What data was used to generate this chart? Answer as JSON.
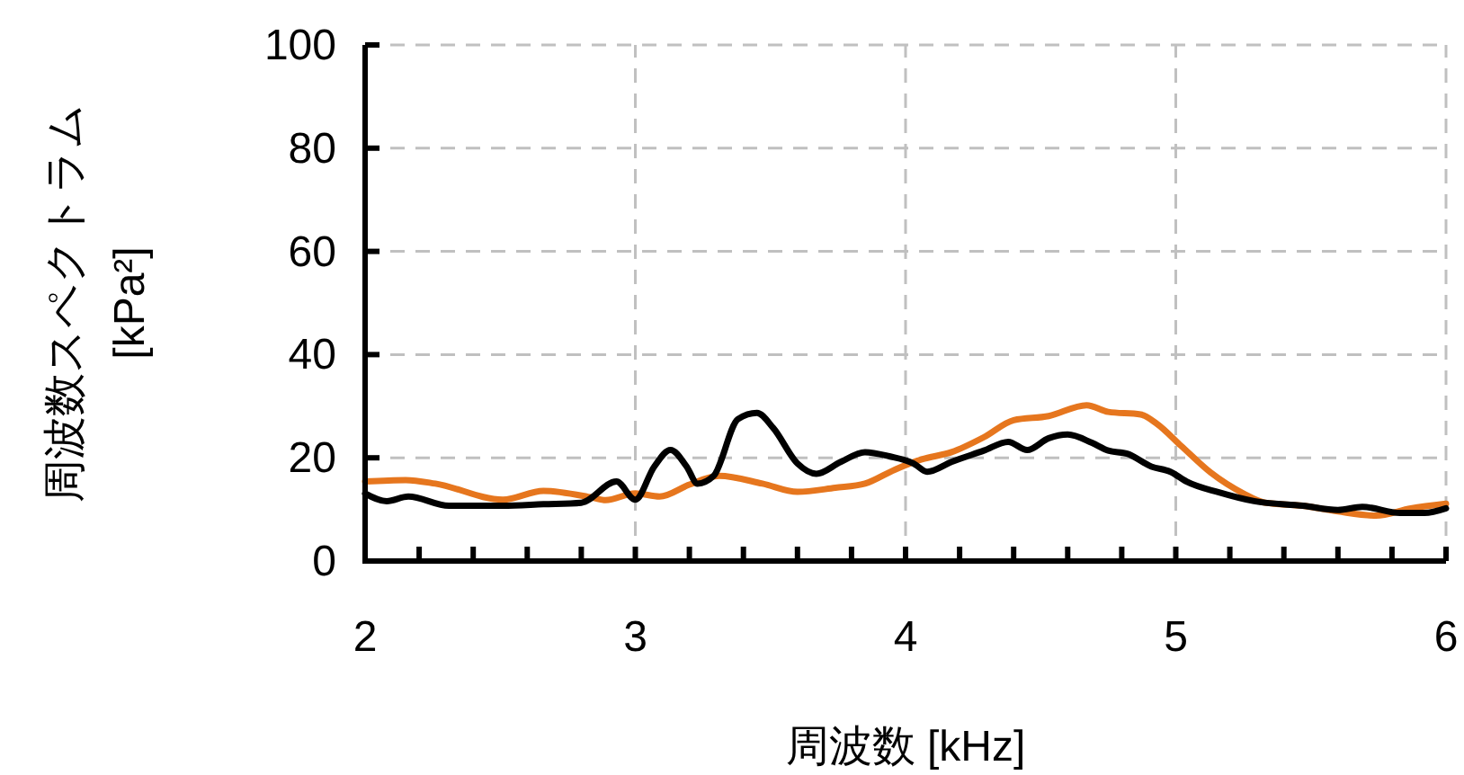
{
  "chart_data": {
    "type": "line",
    "xlabel": "周波数 [kHz]",
    "ylabel": "周波数スペクトラム\n[kPa²]",
    "xlim": [
      2,
      6
    ],
    "ylim": [
      0,
      100
    ],
    "xticks": [
      2,
      {
        "value": 2.2,
        "label": null
      },
      {
        "value": 2.4,
        "label": null
      },
      {
        "value": 2.6,
        "label": null
      },
      {
        "value": 2.8,
        "label": null
      },
      3,
      {
        "value": 3.2,
        "label": null
      },
      {
        "value": 3.4,
        "label": null
      },
      {
        "value": 3.6,
        "label": null
      },
      {
        "value": 3.8,
        "label": null
      },
      4,
      {
        "value": 4.2,
        "label": null
      },
      {
        "value": 4.4,
        "label": null
      },
      {
        "value": 4.6,
        "label": null
      },
      {
        "value": 4.8,
        "label": null
      },
      5,
      {
        "value": 5.2,
        "label": null
      },
      {
        "value": 5.4,
        "label": null
      },
      {
        "value": 5.6,
        "label": null
      },
      {
        "value": 5.8,
        "label": null
      },
      6
    ],
    "yticks": [
      0,
      20,
      40,
      60,
      80,
      100
    ],
    "grid": true,
    "marker": "none",
    "line_style": "solid",
    "series": [
      {
        "color": "#e6761e",
        "x": [
          2,
          2.15,
          2.26,
          2.51,
          2.66,
          2.84,
          2.89,
          3.0,
          3.09,
          3.2,
          3.31,
          3.47,
          3.6,
          3.74,
          3.85,
          3.96,
          4.06,
          4.17,
          4.29,
          4.4,
          4.53,
          4.67,
          4.75,
          4.87,
          4.93,
          5.02,
          5.13,
          5.25,
          5.33,
          5.47,
          5.6,
          5.74,
          5.87,
          6
        ],
        "values": [
          15.4,
          15.7,
          15.0,
          11.9,
          13.6,
          12.3,
          11.8,
          13.1,
          12.5,
          14.8,
          16.5,
          15.0,
          13.4,
          14.2,
          15.0,
          17.7,
          19.7,
          21.1,
          24.0,
          27.3,
          28.1,
          30.2,
          28.9,
          28.4,
          26.6,
          22.3,
          17.1,
          13.1,
          11.3,
          10.7,
          9.6,
          8.8,
          10.2,
          11.1
        ]
      },
      {
        "color": "#000000",
        "x": [
          2,
          2.08,
          2.16,
          2.31,
          2.51,
          2.66,
          2.8,
          2.93,
          3.0,
          3.07,
          3.13,
          3.19,
          3.23,
          3.29,
          3.38,
          3.45,
          3.51,
          3.6,
          3.67,
          3.76,
          3.85,
          3.94,
          4.03,
          4.08,
          4.17,
          4.29,
          4.38,
          4.45,
          4.53,
          4.6,
          4.69,
          4.75,
          4.82,
          4.91,
          4.98,
          5.04,
          5.16,
          5.29,
          5.47,
          5.6,
          5.69,
          5.83,
          5.92,
          6
        ],
        "values": [
          13.1,
          11.6,
          12.5,
          10.7,
          10.7,
          11.0,
          11.3,
          15.4,
          11.9,
          18.3,
          21.5,
          18.3,
          15.0,
          16.5,
          27.5,
          28.7,
          25.8,
          18.9,
          16.9,
          19.2,
          21.1,
          20.3,
          18.9,
          17.3,
          19.2,
          21.4,
          23.1,
          21.5,
          23.8,
          24.5,
          22.9,
          21.4,
          20.8,
          18.3,
          17.3,
          15.4,
          13.3,
          11.6,
          10.7,
          9.9,
          10.5,
          9.3,
          9.3,
          10.2
        ]
      }
    ]
  }
}
